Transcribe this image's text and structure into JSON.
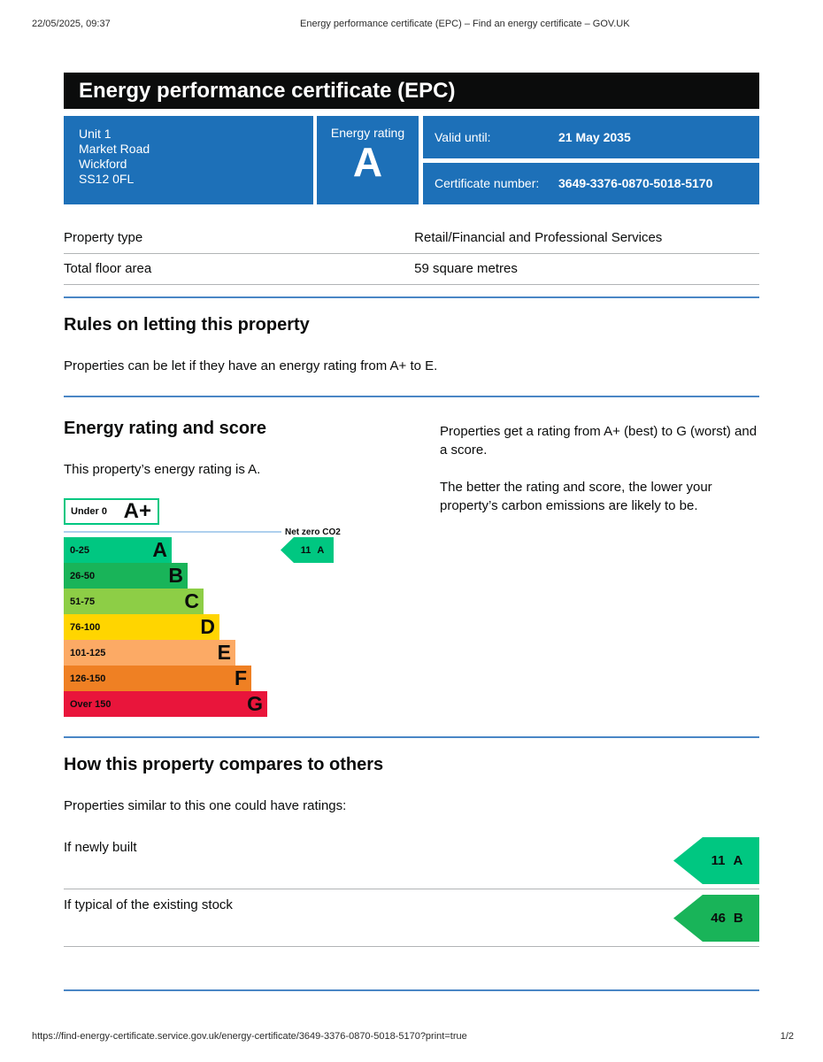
{
  "print_header": {
    "datetime": "22/05/2025, 09:37",
    "doc_title": "Energy performance certificate (EPC) – Find an energy certificate – GOV.UK"
  },
  "print_footer": {
    "url": "https://find-energy-certificate.service.gov.uk/energy-certificate/3649-3376-0870-5018-5170?print=true",
    "page": "1/2"
  },
  "banner": {
    "title": "Energy performance certificate (EPC)"
  },
  "summary": {
    "address_lines": [
      "Unit 1",
      "Market Road",
      "Wickford",
      "SS12 0FL"
    ],
    "energy_rating_label": "Energy rating",
    "energy_rating": "A",
    "valid_until_label": "Valid until:",
    "valid_until": "21 May 2035",
    "certificate_number_label": "Certificate number:",
    "certificate_number": "3649-3376-0870-5018-5170",
    "box_color": "#1d70b8"
  },
  "property_table": {
    "rows": [
      {
        "label": "Property type",
        "value": "Retail/Financial and Professional Services"
      },
      {
        "label": "Total floor area",
        "value": "59 square metres"
      }
    ]
  },
  "rules_section": {
    "heading": "Rules on letting this property",
    "body": "Properties can be let if they have an energy rating from A+ to E."
  },
  "rating_section": {
    "heading": "Energy rating and score",
    "intro": "This property’s energy rating is A.",
    "right_para1": "Properties get a rating from A+ (best) to G (worst) and a score.",
    "right_para2": "The better the rating and score, the lower your property’s carbon emissions are likely to be."
  },
  "chart_data": {
    "type": "epc-rating-scale",
    "title": "Energy rating and score",
    "net_zero_label": "Net zero CO2",
    "bands": [
      {
        "letter": "A+",
        "range": "Under 0",
        "color": "#ffffff",
        "border": "#00c781"
      },
      {
        "letter": "A",
        "range": "0-25",
        "color": "#00c781"
      },
      {
        "letter": "B",
        "range": "26-50",
        "color": "#19b459"
      },
      {
        "letter": "C",
        "range": "51-75",
        "color": "#8dce46"
      },
      {
        "letter": "D",
        "range": "76-100",
        "color": "#ffd500"
      },
      {
        "letter": "E",
        "range": "101-125",
        "color": "#fcaa65"
      },
      {
        "letter": "F",
        "range": "126-150",
        "color": "#ef8023"
      },
      {
        "letter": "G",
        "range": "Over 150",
        "color": "#e9153b"
      }
    ],
    "this_property": {
      "score": "11",
      "letter": "A",
      "color": "#00c781"
    }
  },
  "compare_section": {
    "heading": "How this property compares to others",
    "intro": "Properties similar to this one could have ratings:",
    "rows": [
      {
        "label": "If newly built",
        "score": "11",
        "letter": "A",
        "color": "#00c781"
      },
      {
        "label": "If typical of the existing stock",
        "score": "46",
        "letter": "B",
        "color": "#19b459"
      }
    ]
  }
}
